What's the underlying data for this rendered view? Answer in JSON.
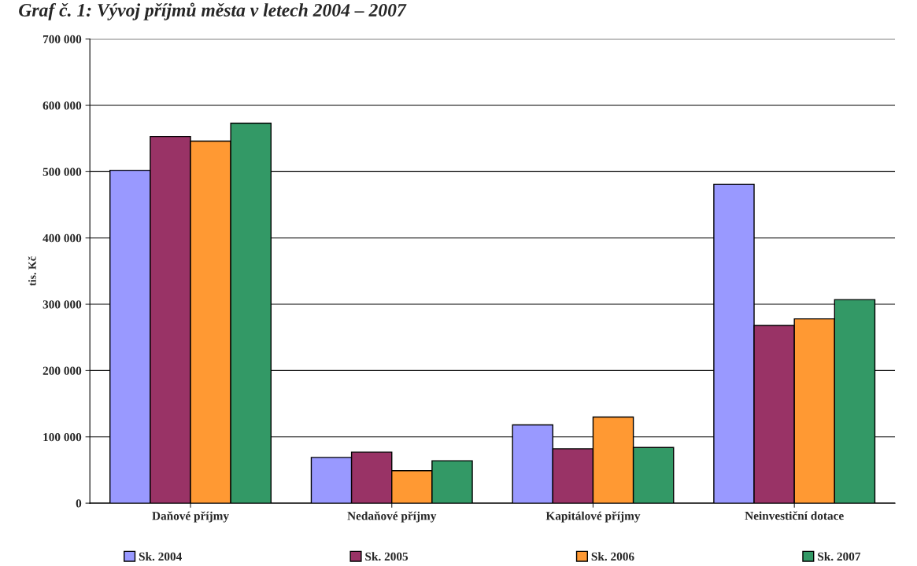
{
  "chart_data": {
    "type": "bar",
    "title": "Graf č. 1: Vývoj příjmů města v letech 2004 – 2007",
    "ylabel": "tis. Kč",
    "categories": [
      "Daňové příjmy",
      "Nedaňové příjmy",
      "Kapitálové příjmy",
      "Neinvestiční dotace"
    ],
    "series": [
      {
        "name": "Sk. 2004",
        "color": "#9999ff",
        "values": [
          502000,
          69000,
          118000,
          481000
        ]
      },
      {
        "name": "Sk. 2005",
        "color": "#993366",
        "values": [
          553000,
          77000,
          82000,
          268000
        ]
      },
      {
        "name": "Sk. 2006",
        "color": "#ff9933",
        "values": [
          546000,
          49000,
          130000,
          278000
        ]
      },
      {
        "name": "Sk. 2007",
        "color": "#339966",
        "values": [
          573000,
          64000,
          84000,
          307000
        ]
      }
    ],
    "ylim": [
      0,
      700000
    ],
    "yticks": [
      0,
      {
        "value": 100000,
        "label": "100 000"
      },
      {
        "value": 200000,
        "label": "200 000"
      },
      {
        "value": 300000,
        "label": "300 000"
      },
      {
        "value": 400000,
        "label": "400 000"
      },
      {
        "value": 500000,
        "label": "500 000"
      },
      {
        "value": 600000,
        "label": "600 000"
      },
      {
        "value": 700000,
        "label": "700 000"
      }
    ],
    "grid": "y",
    "legend": "bottom"
  }
}
